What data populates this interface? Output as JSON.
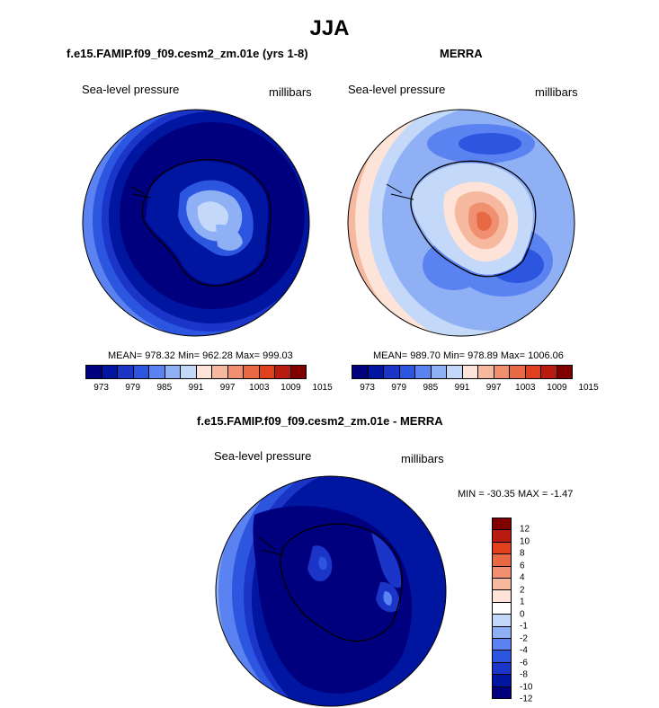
{
  "figure": {
    "title": "JJA",
    "model_panel_title": "f.e15.FAMIP.f09_f09.cesm2_zm.01e (yrs 1-8)",
    "obs_panel_title": "MERRA",
    "diff_panel_title": "f.e15.FAMIP.f09_f09.cesm2_zm.01e - MERRA"
  },
  "panels": {
    "model": {
      "variable": "Sea-level pressure",
      "units": "millibars",
      "stats": "MEAN= 978.32  Min= 962.28  Max= 999.03"
    },
    "obs": {
      "variable": "Sea-level pressure",
      "units": "millibars",
      "stats": "MEAN= 989.70  Min= 978.89  Max= 1006.06"
    },
    "diff": {
      "variable": "Sea-level pressure",
      "units": "millibars",
      "stats": "MIN = -30.35 MAX =  -1.47"
    }
  },
  "colors": {
    "abs_scale": [
      "#00007f",
      "#0015a0",
      "#1a35c8",
      "#2c55e0",
      "#5a82f0",
      "#8fb0f5",
      "#c4d8fa",
      "#fde3d8",
      "#f7b8a0",
      "#f09070",
      "#e86a45",
      "#e0401e",
      "#b81c10",
      "#800000"
    ],
    "diff_scale_top_to_bottom": [
      "#800000",
      "#b81c10",
      "#e0401e",
      "#e86a45",
      "#f09070",
      "#f7b8a0",
      "#fde3d8",
      "#ffffff",
      "#c4d8fa",
      "#8fb0f5",
      "#5a82f0",
      "#2c55e0",
      "#1a35c8",
      "#0015a0",
      "#00007f"
    ],
    "land_outline": "#000000"
  },
  "chart_data": [
    {
      "type": "heatmap",
      "projection": "south-polar stereographic",
      "title": "f.e15.FAMIP.f09_f09.cesm2_zm.01e (yrs 1-8)",
      "variable": "Sea-level pressure",
      "units": "millibars",
      "mean": 978.32,
      "min": 962.28,
      "max": 999.03,
      "contour_levels": [
        973,
        976,
        979,
        982,
        985,
        988,
        991,
        994,
        997,
        1000,
        1003,
        1006,
        1009,
        1012,
        1015
      ],
      "tick_labels": [
        "973",
        "979",
        "985",
        "991",
        "997",
        "1003",
        "1009",
        "1015"
      ]
    },
    {
      "type": "heatmap",
      "projection": "south-polar stereographic",
      "title": "MERRA",
      "variable": "Sea-level pressure",
      "units": "millibars",
      "mean": 989.7,
      "min": 978.89,
      "max": 1006.06,
      "contour_levels": [
        973,
        976,
        979,
        982,
        985,
        988,
        991,
        994,
        997,
        1000,
        1003,
        1006,
        1009,
        1012,
        1015
      ],
      "tick_labels": [
        "973",
        "979",
        "985",
        "991",
        "997",
        "1003",
        "1009",
        "1015"
      ]
    },
    {
      "type": "heatmap",
      "projection": "south-polar stereographic",
      "title": "f.e15.FAMIP.f09_f09.cesm2_zm.01e - MERRA",
      "variable": "Sea-level pressure",
      "units": "millibars",
      "min": -30.35,
      "max": -1.47,
      "contour_levels": [
        -12,
        -10,
        -8,
        -6,
        -4,
        -2,
        -1,
        0,
        1,
        2,
        4,
        6,
        8,
        10,
        12
      ],
      "tick_labels": [
        "12",
        "10",
        "8",
        "6",
        "4",
        "2",
        "1",
        "0",
        "-1",
        "-2",
        "-4",
        "-6",
        "-8",
        "-10",
        "-12"
      ]
    }
  ]
}
